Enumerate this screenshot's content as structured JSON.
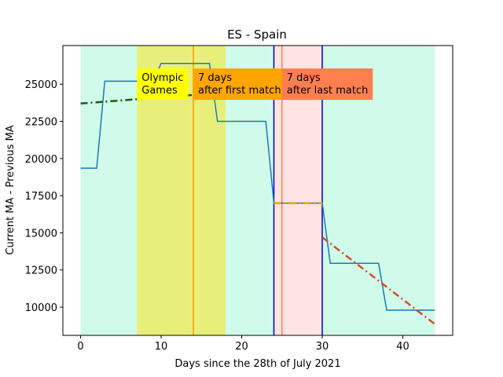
{
  "chart_data": {
    "type": "line",
    "title": "ES - Spain",
    "xlabel": "Days since the 28th of July 2021",
    "ylabel": "Current MA - Previous MA",
    "xlim": [
      -2.2,
      46.2
    ],
    "ylim": [
      8100,
      27600
    ],
    "xticks": [
      0,
      10,
      20,
      30,
      40
    ],
    "yticks": [
      10000,
      12500,
      15000,
      17500,
      20000,
      22500,
      25000
    ],
    "grid": false,
    "series": [
      {
        "color": "#1f77b4",
        "points": [
          [
            0,
            19350
          ],
          [
            2,
            19350
          ],
          [
            3,
            25200
          ],
          [
            9,
            25200
          ],
          [
            10,
            26400
          ],
          [
            16,
            26400
          ],
          [
            17,
            22500
          ],
          [
            23,
            22500
          ],
          [
            24,
            17000
          ],
          [
            30,
            17000
          ],
          [
            31,
            12950
          ],
          [
            37,
            12950
          ],
          [
            38,
            9800
          ],
          [
            44,
            9800
          ]
        ]
      }
    ],
    "trend_lines": [
      {
        "color": "#1a5c1a",
        "style": "dash-dot",
        "points": [
          [
            0,
            23700
          ],
          [
            17,
            24400
          ]
        ]
      },
      {
        "color": "#f5a000",
        "style": "dash-dot",
        "points": [
          [
            24,
            17000
          ],
          [
            30,
            17000
          ]
        ]
      },
      {
        "color": "#d94a2a",
        "style": "dash-dot",
        "points": [
          [
            30,
            14700
          ],
          [
            44,
            8850
          ]
        ]
      }
    ],
    "shaded_regions": [
      {
        "x0": 0,
        "x1": 7,
        "color": "#d0fbea"
      },
      {
        "x0": 7,
        "x1": 18,
        "color": "#e7ef7a"
      },
      {
        "x0": 18,
        "x1": 24,
        "color": "#d0fbea"
      },
      {
        "x0": 24,
        "x1": 30,
        "color": "#fde4e2"
      },
      {
        "x0": 30,
        "x1": 44,
        "color": "#d0fbea"
      }
    ],
    "vertical_lines": [
      {
        "x": 14,
        "color": "#f5a000"
      },
      {
        "x": 24,
        "color": "#0000cc"
      },
      {
        "x": 25,
        "color": "#ff7f50"
      },
      {
        "x": 30,
        "color": "#0000cc"
      }
    ],
    "annotations": [
      {
        "lines": [
          "Olympic",
          "Games"
        ],
        "x": 7,
        "y": 25900,
        "bg": "#ffff00"
      },
      {
        "lines": [
          "7 days",
          "after first match"
        ],
        "x": 14,
        "y": 25900,
        "bg": "#ffa500"
      },
      {
        "lines": [
          "7 days",
          "after last match"
        ],
        "x": 25,
        "y": 25900,
        "bg": "#ff7f50"
      }
    ]
  }
}
